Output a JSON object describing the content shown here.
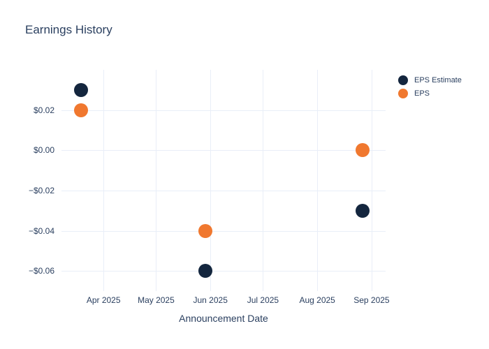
{
  "header": {
    "title": "Earnings History"
  },
  "colors": {
    "eps_estimate": "#14263e",
    "eps": "#f0782f",
    "text": "#2a3f5f",
    "grid": "#e9eef8",
    "background": "#ffffff"
  },
  "legend": {
    "items": [
      {
        "label": "EPS Estimate",
        "color": "#14263e"
      },
      {
        "label": "EPS",
        "color": "#f0782f"
      }
    ]
  },
  "chart_data": {
    "type": "scatter",
    "title": "Earnings History",
    "xlabel": "Announcement Date",
    "ylabel": "",
    "grid": true,
    "legend_position": "right-top",
    "xlim": [
      "2025-03-08",
      "2025-09-09"
    ],
    "ylim": [
      -0.07,
      0.04
    ],
    "x_ticks": [
      {
        "date": "2025-04-01",
        "label": "Apr 2025"
      },
      {
        "date": "2025-05-01",
        "label": "May 2025"
      },
      {
        "date": "2025-06-01",
        "label": "Jun 2025"
      },
      {
        "date": "2025-07-01",
        "label": "Jul 2025"
      },
      {
        "date": "2025-08-01",
        "label": "Aug 2025"
      },
      {
        "date": "2025-09-01",
        "label": "Sep 2025"
      }
    ],
    "y_ticks": [
      {
        "value": 0.02,
        "label": "$0.02"
      },
      {
        "value": 0.0,
        "label": "$0.00"
      },
      {
        "value": -0.02,
        "label": "−$0.02"
      },
      {
        "value": -0.04,
        "label": "−$0.04"
      },
      {
        "value": -0.06,
        "label": "−$0.06"
      }
    ],
    "series": [
      {
        "name": "EPS Estimate",
        "color": "#14263e",
        "marker_size": 20,
        "points": [
          {
            "x": "2025-03-19",
            "y": 0.03
          },
          {
            "x": "2025-05-29",
            "y": -0.06
          },
          {
            "x": "2025-08-27",
            "y": -0.03
          }
        ]
      },
      {
        "name": "EPS",
        "color": "#f0782f",
        "marker_size": 20,
        "points": [
          {
            "x": "2025-03-19",
            "y": 0.02
          },
          {
            "x": "2025-05-29",
            "y": -0.04
          },
          {
            "x": "2025-08-27",
            "y": 0.0
          }
        ]
      }
    ]
  }
}
